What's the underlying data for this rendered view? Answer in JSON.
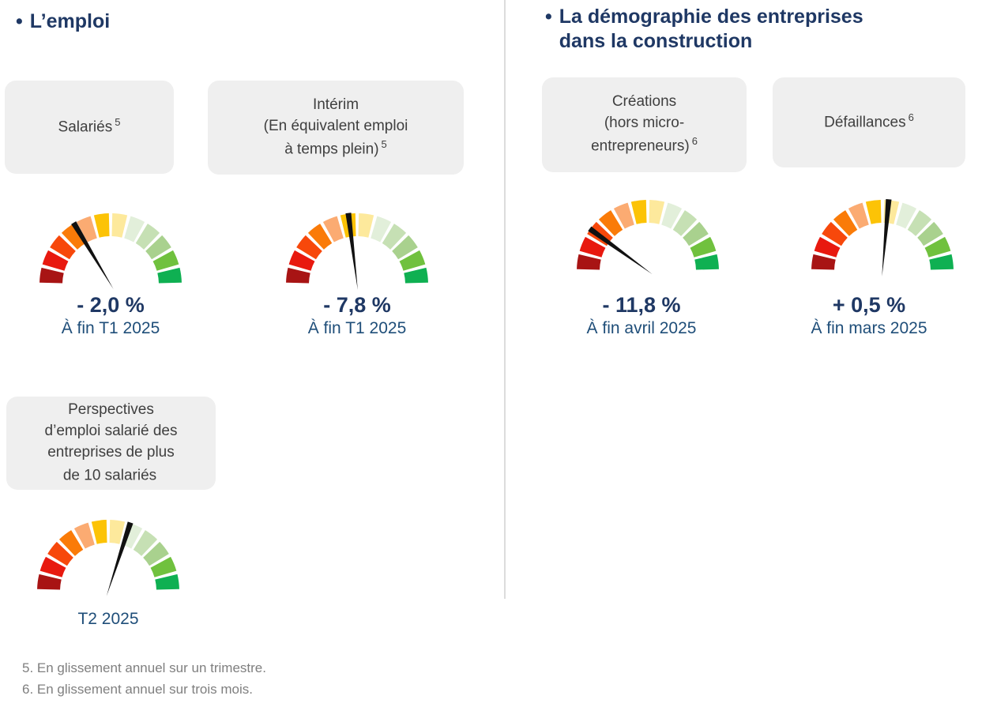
{
  "sections": {
    "emploi": {
      "bullet": "•",
      "title": "L’emploi",
      "boxes": {
        "salaries": {
          "lines": [
            "Salariés"
          ],
          "sup": "5"
        },
        "interim": {
          "lines": [
            "Intérim",
            "(En équivalent emploi",
            "à temps plein)"
          ],
          "sup": "5"
        },
        "perspectives": {
          "lines": [
            "Perspectives",
            "d’emploi salarié des",
            "entreprises de plus",
            "de 10 salariés"
          ],
          "sup": ""
        }
      }
    },
    "demographie": {
      "bullet": "•",
      "title": "La démographie des entreprises\ndans la construction",
      "boxes": {
        "creations": {
          "lines": [
            "Créations",
            "(hors micro-",
            "entrepreneurs)"
          ],
          "sup": "6"
        },
        "defaillances": {
          "lines": [
            "Défaillances"
          ],
          "sup": "6"
        }
      }
    }
  },
  "chart_data": {
    "type": "gauge",
    "arc_degrees": 180,
    "segment_count": 12,
    "segment_colors": [
      "#a81414",
      "#e8190f",
      "#f7480b",
      "#fa7b08",
      "#fbab72",
      "#fcc306",
      "#fde99c",
      "#e2efda",
      "#c6e0b4",
      "#a9d18e",
      "#70c13e",
      "#0fb052"
    ],
    "gauges": [
      {
        "id": "salaries",
        "label": "Salariés",
        "value": "- 2,0 %",
        "period": "À fin T1 2025",
        "needle_angle_deg": 121
      },
      {
        "id": "interim",
        "label": "Intérim (En équivalent emploi à temps plein)",
        "value": "- 7,8 %",
        "period": "À fin T1 2025",
        "needle_angle_deg": 97
      },
      {
        "id": "creations",
        "label": "Créations (hors micro-entrepreneurs)",
        "value": "- 11,8 %",
        "period": "À fin avril 2025",
        "needle_angle_deg": 144
      },
      {
        "id": "defaillances",
        "label": "Défaillances",
        "value": "+ 0,5 %",
        "period": "À fin mars 2025",
        "needle_angle_deg": 85
      },
      {
        "id": "perspectives",
        "label": "Perspectives d’emploi salarié des entreprises de plus de 10 salariés",
        "value": "",
        "period": "T2 2025",
        "needle_angle_deg": 72
      }
    ]
  },
  "footnotes": [
    "5. En glissement annuel sur un trimestre.",
    "6. En glissement annuel sur trois mois."
  ],
  "colors": {
    "heading": "#1f3864",
    "value_text": "#1f3864",
    "caption_text": "#1f4e79",
    "box_bg": "#efefef",
    "box_text": "#3f3f3f",
    "footnote": "#7f7f7f",
    "divider": "#dcdcdc",
    "needle": "#111111"
  }
}
